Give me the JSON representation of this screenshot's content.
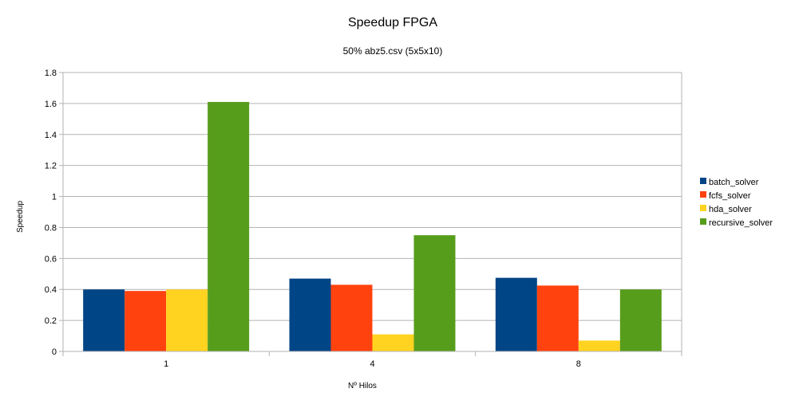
{
  "chart_data": {
    "type": "bar",
    "title": "Speedup FPGA",
    "subtitle": "50% abz5.csv (5x5x10)",
    "xlabel": "Nº Hilos",
    "ylabel": "Speedup",
    "categories": [
      "1",
      "4",
      "8"
    ],
    "ylim": [
      0,
      1.8
    ],
    "yticks": [
      "0",
      "0.2",
      "0.4",
      "0.6",
      "0.8",
      "1",
      "1.2",
      "1.4",
      "1.6",
      "1.8"
    ],
    "grid": true,
    "legend_position": "right",
    "series": [
      {
        "name": "batch_solver",
        "color": "#004586",
        "values": [
          0.4,
          0.47,
          0.475
        ]
      },
      {
        "name": "fcfs_solver",
        "color": "#ff420e",
        "values": [
          0.39,
          0.43,
          0.425
        ]
      },
      {
        "name": "hda_solver",
        "color": "#ffd320",
        "values": [
          0.4,
          0.11,
          0.07
        ]
      },
      {
        "name": "recursive_solver",
        "color": "#579d1c",
        "values": [
          1.61,
          0.75,
          0.4
        ]
      }
    ]
  }
}
